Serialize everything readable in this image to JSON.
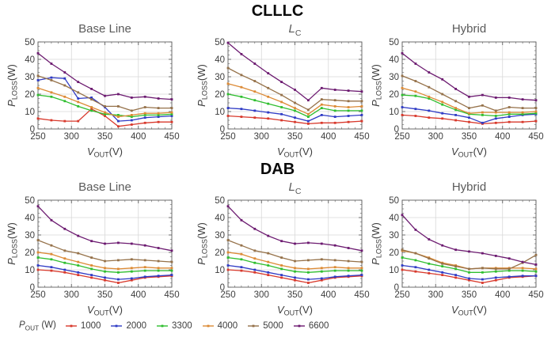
{
  "rows": [
    {
      "title": "CLLLC"
    },
    {
      "title": "DAB"
    }
  ],
  "axes": {
    "xlabel": {
      "symbol": "V",
      "sub": "OUT",
      "unit": "(V)"
    },
    "ylabel": {
      "symbol": "P",
      "sub": "LOSS",
      "unit": "(W)"
    }
  },
  "legend": {
    "label": {
      "symbol": "P",
      "sub": "OUT",
      "unit": "(W)"
    },
    "entries": [
      {
        "label": "1000",
        "color": "#d8392c"
      },
      {
        "label": "2000",
        "color": "#2f3bc5"
      },
      {
        "label": "3300",
        "color": "#2fbe2f"
      },
      {
        "label": "4000",
        "color": "#dc8a35"
      },
      {
        "label": "5000",
        "color": "#957149"
      },
      {
        "label": "6600",
        "color": "#6c1a70"
      }
    ]
  },
  "chart_data": [
    {
      "type": "line",
      "group": "CLLLC",
      "title": "Base Line",
      "xlabel": "V_OUT(V)",
      "ylabel": "P_LOSS(W)",
      "x": [
        250,
        270,
        290,
        310,
        330,
        350,
        370,
        390,
        410,
        430,
        450
      ],
      "xlim": [
        250,
        450
      ],
      "ylim": [
        0,
        50
      ],
      "xticks": [
        250,
        300,
        350,
        400,
        450
      ],
      "yticks": [
        0,
        10,
        20,
        30,
        40,
        50
      ],
      "xminor": 10,
      "yminor": 2.5,
      "grid": true,
      "series": [
        {
          "name": "1000",
          "values": [
            6,
            5,
            4.5,
            4.5,
            11.5,
            7.5,
            1.5,
            2.5,
            3.5,
            4,
            4
          ]
        },
        {
          "name": "2000",
          "values": [
            28,
            29.5,
            29,
            17.5,
            18,
            12.5,
            4.5,
            5,
            6.5,
            7,
            7.5
          ]
        },
        {
          "name": "3300",
          "values": [
            19.5,
            18.5,
            16,
            13,
            10.5,
            8.5,
            8,
            7,
            8,
            8,
            8.5
          ]
        },
        {
          "name": "4000",
          "values": [
            23.5,
            21,
            18.5,
            15.5,
            12.5,
            9.5,
            7,
            8,
            9,
            9,
            9.5
          ]
        },
        {
          "name": "5000",
          "values": [
            30.5,
            28,
            25,
            21,
            17,
            13,
            13,
            10.5,
            12.5,
            12,
            12
          ]
        },
        {
          "name": "6600",
          "values": [
            43.5,
            37.5,
            32.5,
            27,
            23,
            19,
            20,
            18,
            18.5,
            17.5,
            17
          ]
        }
      ]
    },
    {
      "type": "line",
      "group": "CLLLC",
      "title": {
        "symbol": "L",
        "sub": "C"
      },
      "xlabel": "V_OUT(V)",
      "ylabel": "P_LOSS(W)",
      "x": [
        250,
        270,
        290,
        310,
        330,
        350,
        370,
        390,
        410,
        430,
        450
      ],
      "xlim": [
        250,
        450
      ],
      "ylim": [
        0,
        50
      ],
      "xticks": [
        250,
        300,
        350,
        400,
        450
      ],
      "yticks": [
        0,
        10,
        20,
        30,
        40,
        50
      ],
      "xminor": 10,
      "yminor": 2.5,
      "grid": true,
      "series": [
        {
          "name": "1000",
          "values": [
            7.5,
            7,
            6.5,
            6,
            5,
            4,
            3,
            3.5,
            3.5,
            4,
            4.5
          ]
        },
        {
          "name": "2000",
          "values": [
            12,
            11.5,
            10.5,
            9.5,
            8.5,
            6.5,
            4.5,
            8,
            7,
            7.5,
            8
          ]
        },
        {
          "name": "3300",
          "values": [
            20,
            18.5,
            16.5,
            14.5,
            12.5,
            10.5,
            7,
            12,
            10.5,
            10.5,
            10.5
          ]
        },
        {
          "name": "4000",
          "values": [
            26,
            24,
            21.5,
            18.5,
            15.5,
            12,
            8.5,
            14,
            13,
            12.5,
            13
          ]
        },
        {
          "name": "5000",
          "values": [
            35,
            31,
            27.5,
            23.5,
            19.5,
            15,
            11,
            17,
            16.5,
            16,
            16
          ]
        },
        {
          "name": "6600",
          "values": [
            49.5,
            43,
            37.5,
            32,
            27,
            22.5,
            16.5,
            23.5,
            22.5,
            22,
            21.5
          ]
        }
      ]
    },
    {
      "type": "line",
      "group": "CLLLC",
      "title": "Hybrid",
      "xlabel": "V_OUT(V)",
      "ylabel": "P_LOSS(W)",
      "x": [
        250,
        270,
        290,
        310,
        330,
        350,
        370,
        390,
        410,
        430,
        450
      ],
      "xlim": [
        250,
        450
      ],
      "ylim": [
        0,
        50
      ],
      "xticks": [
        250,
        300,
        350,
        400,
        450
      ],
      "yticks": [
        0,
        10,
        20,
        30,
        40,
        50
      ],
      "xminor": 10,
      "yminor": 2.5,
      "grid": true,
      "series": [
        {
          "name": "1000",
          "values": [
            8,
            7.5,
            6.5,
            6,
            5,
            4,
            3,
            3.5,
            4,
            4,
            4.5
          ]
        },
        {
          "name": "2000",
          "values": [
            12.5,
            11.5,
            10.5,
            9,
            8,
            6.5,
            3.5,
            6,
            7,
            8,
            8.5
          ]
        },
        {
          "name": "3300",
          "values": [
            19.5,
            19,
            17.5,
            14,
            11,
            8.5,
            8,
            7.5,
            8.5,
            8.5,
            9
          ]
        },
        {
          "name": "4000",
          "values": [
            23.5,
            21.5,
            18.5,
            15.5,
            12,
            9,
            9.5,
            9.5,
            9.5,
            9.5,
            10
          ]
        },
        {
          "name": "5000",
          "values": [
            30.5,
            27.5,
            24,
            20,
            16,
            12,
            13.5,
            10.5,
            12.5,
            12,
            12
          ]
        },
        {
          "name": "6600",
          "values": [
            43.5,
            37.5,
            32.5,
            28.5,
            23,
            18.5,
            19.5,
            18,
            18,
            17,
            16.5
          ]
        }
      ]
    },
    {
      "type": "line",
      "group": "DAB",
      "title": "Base Line",
      "xlabel": "V_OUT(V)",
      "ylabel": "P_LOSS(W)",
      "x": [
        250,
        270,
        290,
        310,
        330,
        350,
        370,
        390,
        410,
        430,
        450
      ],
      "xlim": [
        250,
        450
      ],
      "ylim": [
        0,
        50
      ],
      "xticks": [
        250,
        300,
        350,
        400,
        450
      ],
      "yticks": [
        0,
        10,
        20,
        30,
        40,
        50
      ],
      "xminor": 10,
      "yminor": 2.5,
      "grid": true,
      "series": [
        {
          "name": "1000",
          "values": [
            10,
            9.5,
            8.5,
            7,
            5.5,
            4,
            2.5,
            4,
            5.5,
            6,
            6.5
          ]
        },
        {
          "name": "2000",
          "values": [
            12.5,
            11.5,
            10,
            8.5,
            7,
            5.5,
            4.5,
            5,
            6,
            6.5,
            7
          ]
        },
        {
          "name": "3300",
          "values": [
            17,
            16,
            14,
            12.5,
            10.5,
            9,
            8.5,
            9,
            9.5,
            9.5,
            9.5
          ]
        },
        {
          "name": "4000",
          "values": [
            20,
            19,
            16.5,
            14.5,
            12.5,
            11,
            10.5,
            11,
            11.5,
            11,
            11
          ]
        },
        {
          "name": "5000",
          "values": [
            27,
            24,
            21,
            19.5,
            17,
            15,
            15.5,
            16,
            15.5,
            15,
            14.5
          ]
        },
        {
          "name": "6600",
          "values": [
            46.5,
            38.5,
            33.5,
            29.5,
            26.5,
            25,
            25.5,
            25,
            24,
            22.5,
            21
          ]
        }
      ]
    },
    {
      "type": "line",
      "group": "DAB",
      "title": {
        "symbol": "L",
        "sub": "C"
      },
      "xlabel": "V_OUT(V)",
      "ylabel": "P_LOSS(W)",
      "x": [
        250,
        270,
        290,
        310,
        330,
        350,
        370,
        390,
        410,
        430,
        450
      ],
      "xlim": [
        250,
        450
      ],
      "ylim": [
        0,
        50
      ],
      "xticks": [
        250,
        300,
        350,
        400,
        450
      ],
      "yticks": [
        0,
        10,
        20,
        30,
        40,
        50
      ],
      "xminor": 10,
      "yminor": 2.5,
      "grid": true,
      "series": [
        {
          "name": "1000",
          "values": [
            10,
            9.5,
            8.5,
            7,
            5.5,
            4,
            2.5,
            4,
            5.5,
            6,
            6.5
          ]
        },
        {
          "name": "2000",
          "values": [
            12.5,
            11.5,
            10,
            8.5,
            7,
            5.5,
            4.5,
            5,
            6,
            6.5,
            7
          ]
        },
        {
          "name": "3300",
          "values": [
            17,
            16,
            14,
            12.5,
            10.5,
            9,
            8.5,
            9,
            9.5,
            9.5,
            9.5
          ]
        },
        {
          "name": "4000",
          "values": [
            20,
            19,
            16.5,
            14.5,
            12.5,
            11,
            10.5,
            11,
            11.5,
            11,
            11
          ]
        },
        {
          "name": "5000",
          "values": [
            27,
            24,
            21,
            19.5,
            17,
            15,
            15.5,
            16,
            15.5,
            15,
            14.5
          ]
        },
        {
          "name": "6600",
          "values": [
            46.5,
            38.5,
            33.5,
            29.5,
            26.5,
            25,
            25.5,
            25,
            24,
            22.5,
            21
          ]
        }
      ]
    },
    {
      "type": "line",
      "group": "DAB",
      "title": "Hybrid",
      "xlabel": "V_OUT(V)",
      "ylabel": "P_LOSS(W)",
      "x": [
        250,
        270,
        290,
        310,
        330,
        350,
        370,
        390,
        410,
        430,
        450
      ],
      "xlim": [
        250,
        450
      ],
      "ylim": [
        0,
        50
      ],
      "xticks": [
        250,
        300,
        350,
        400,
        450
      ],
      "yticks": [
        0,
        10,
        20,
        30,
        40,
        50
      ],
      "xminor": 10,
      "yminor": 2.5,
      "grid": true,
      "series": [
        {
          "name": "1000",
          "values": [
            10,
            9,
            8,
            7,
            5.5,
            4,
            2.5,
            4,
            5.5,
            6,
            6.5
          ]
        },
        {
          "name": "2000",
          "values": [
            12.5,
            11.5,
            10,
            8.5,
            7,
            5,
            4.5,
            5.5,
            6,
            6.5,
            6.5
          ]
        },
        {
          "name": "3300",
          "values": [
            17,
            15.5,
            13.5,
            12,
            10.5,
            8.5,
            8.5,
            9,
            9.5,
            9.5,
            9
          ]
        },
        {
          "name": "4000",
          "values": [
            21,
            19.5,
            17,
            14,
            12.5,
            10.5,
            11,
            11,
            11,
            11,
            10.5
          ]
        },
        {
          "name": "5000",
          "values": [
            21.5,
            19.5,
            16.5,
            13.5,
            12,
            10.5,
            11,
            10.5,
            10.5,
            14,
            18.5
          ]
        },
        {
          "name": "6600",
          "values": [
            41.5,
            33,
            27.5,
            24,
            21.5,
            20.5,
            19.5,
            18,
            16.5,
            14.5,
            13
          ]
        }
      ]
    }
  ]
}
